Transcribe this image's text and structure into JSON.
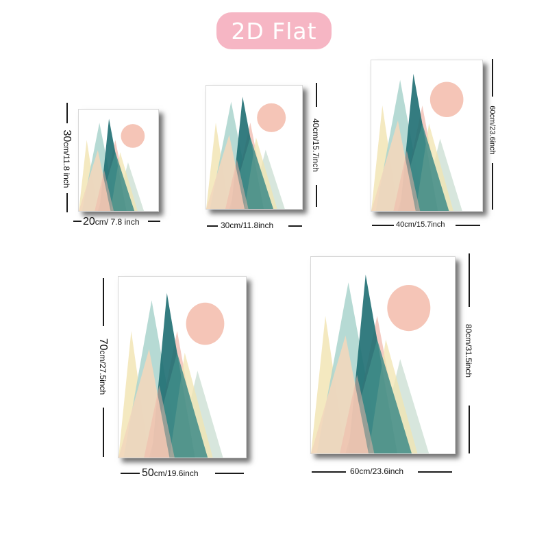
{
  "badge": {
    "text": "2D Flat",
    "bg": "#f6b6c4"
  },
  "palette": {
    "sun": "#f4c2b3",
    "teal_dark": "#1e6e72",
    "teal": "#3f8c88",
    "mint": "#a9d3cc",
    "sage": "#c9ddd2",
    "pink": "#f0b5a8",
    "cream": "#f1e4b0",
    "sand": "#f2d7bc"
  },
  "posters": [
    {
      "id": "20x30",
      "width_label_num": "20",
      "width_label_rest": "cm/ 7.8 inch",
      "height_label_num": "30",
      "height_label_rest": "cm/11.8 inch"
    },
    {
      "id": "30x40",
      "width_label": "30cm/11.8inch",
      "height_label": "40cm/15.7inch"
    },
    {
      "id": "40x60",
      "width_label": "40cm/15.7inch",
      "height_label": "60cm/23.6inch"
    },
    {
      "id": "50x70",
      "width_label_num": "50",
      "width_label_rest": "cm/19.6inch",
      "height_label_num": "70",
      "height_label_rest": "cm/27.5inch"
    },
    {
      "id": "60x80",
      "width_label": "60cm/23.6inch",
      "height_label": "80cm/31.5inch"
    }
  ]
}
